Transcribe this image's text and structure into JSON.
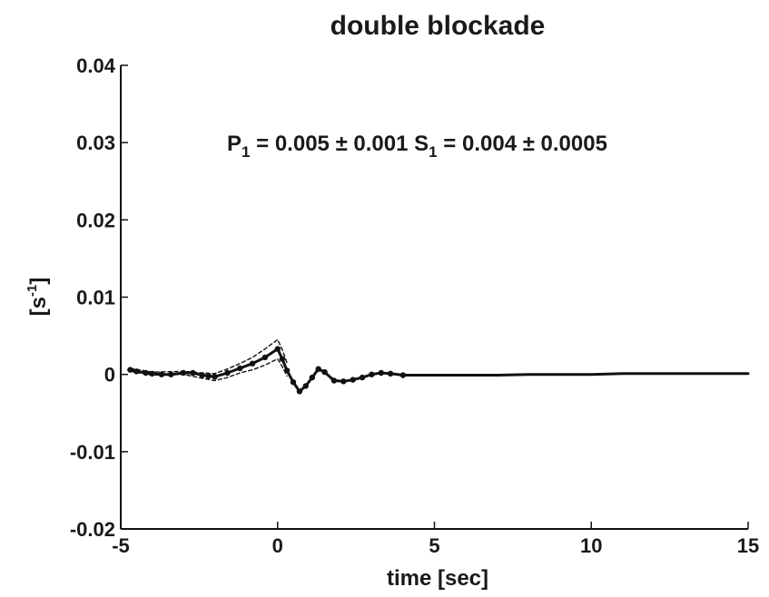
{
  "chart_data": {
    "type": "line",
    "title": "double blockade",
    "xlabel": "time [sec]",
    "ylabel": {
      "main": "[s",
      "sup": "-1",
      "close": "]"
    },
    "xlim": [
      -5,
      15
    ],
    "ylim": [
      -0.02,
      0.04
    ],
    "xticks": [
      -5,
      0,
      5,
      10,
      15
    ],
    "xtick_labels": [
      "-5",
      "0",
      "5",
      "10",
      "15"
    ],
    "yticks": [
      -0.02,
      -0.01,
      0,
      0.01,
      0.02,
      0.03,
      0.04
    ],
    "ytick_labels": [
      "-0.02",
      "-0.01",
      "0",
      "0.01",
      "0.02",
      "0.03",
      "0.04"
    ],
    "grid": false,
    "annotation": {
      "p_main": "P",
      "p_sub": "1",
      "p_rest": " = 0.005 ± 0.001  ",
      "s_main": "S",
      "s_sub": "1",
      "s_rest": " = 0.004 ± 0.0005"
    },
    "series": [
      {
        "style": "solid",
        "x": [
          -4.7,
          -4.5,
          -4.2,
          -4.0,
          -3.7,
          -3.4,
          -3.0,
          -2.7,
          -2.4,
          -2.2,
          -2.0,
          -1.6,
          -1.2,
          -0.8,
          -0.4,
          0.0,
          0.15,
          0.3,
          0.5,
          0.7,
          0.9,
          1.1,
          1.3,
          1.5,
          1.8,
          2.1,
          2.4,
          2.7,
          3.0,
          3.3,
          3.6,
          4.0,
          5.0,
          6.0,
          7.0,
          8.0,
          9.0,
          10.0,
          11.0,
          12.0,
          13.0,
          14.0,
          15.0
        ],
        "y": [
          0.0006,
          0.0004,
          0.0002,
          0.0001,
          0.0,
          0.0,
          0.0002,
          0.0002,
          -0.0001,
          -0.0002,
          -0.0003,
          0.0002,
          0.0008,
          0.0014,
          0.0022,
          0.0033,
          0.002,
          0.0005,
          -0.001,
          -0.0022,
          -0.0015,
          -0.0004,
          0.0007,
          0.0003,
          -0.0008,
          -0.0009,
          -0.0007,
          -0.0004,
          0.0,
          0.0002,
          0.0001,
          -0.0001,
          -0.0001,
          -0.0001,
          -0.0001,
          0.0,
          0.0,
          0.0,
          0.0001,
          0.0001,
          0.0001,
          0.0001,
          0.0001
        ]
      },
      {
        "style": "dashed",
        "x": [
          -4.7,
          -4.0,
          -3.0,
          -2.4,
          -2.0,
          -1.6,
          -1.2,
          -0.8,
          -0.4,
          0.0,
          0.15,
          0.3
        ],
        "y": [
          0.0008,
          0.0003,
          0.0004,
          0.0002,
          0.0001,
          0.0007,
          0.0014,
          0.0022,
          0.0033,
          0.0045,
          0.0032,
          0.0015
        ]
      },
      {
        "style": "dashed",
        "x": [
          -4.7,
          -4.0,
          -3.0,
          -2.4,
          -2.0,
          -1.6,
          -1.2,
          -0.8,
          -0.4,
          0.0,
          0.15,
          0.3
        ],
        "y": [
          0.0004,
          -0.0001,
          0.0,
          -0.0005,
          -0.0008,
          -0.0004,
          0.0002,
          0.0006,
          0.0012,
          0.002,
          0.001,
          -0.0002
        ]
      }
    ]
  }
}
